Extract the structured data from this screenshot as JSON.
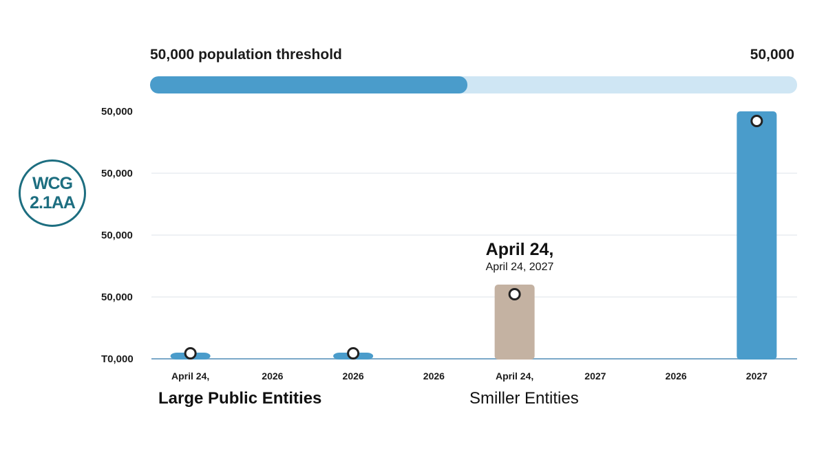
{
  "badge": {
    "line1": "WCG",
    "line2": "2.1AA"
  },
  "threshold": {
    "label": "50,000 population threshold",
    "value_label": "50,000",
    "fill_percent": 49
  },
  "annotation": {
    "title": "April 24,",
    "subtitle": "April 24, 2027"
  },
  "groups": [
    "Large Public Entities",
    "Smiller Entities"
  ],
  "colors": {
    "primary": "#4a9ccb",
    "secondary": "#c4b2a2",
    "track": "#cfe6f4",
    "badge": "#1d6e80"
  },
  "chart_data": {
    "type": "bar",
    "title": "",
    "xlabel": "",
    "ylabel": "",
    "y_tick_labels": [
      "T0,000",
      "50,000",
      "50,000",
      "50,000",
      "50,000"
    ],
    "ylim": [
      0,
      4
    ],
    "grid": true,
    "categories": [
      "April 24,",
      "2026",
      "2026",
      "2026",
      "April 24,",
      "2027",
      "2026",
      "2027"
    ],
    "series": [
      {
        "values": [
          0.1,
          0,
          0.1,
          0,
          1.2,
          0,
          0,
          4.0
        ],
        "colors": [
          "#4a9ccb",
          "#4a9ccb",
          "#4a9ccb",
          "#4a9ccb",
          "#c4b2a2",
          "#4a9ccb",
          "#4a9ccb",
          "#4a9ccb"
        ]
      }
    ]
  }
}
